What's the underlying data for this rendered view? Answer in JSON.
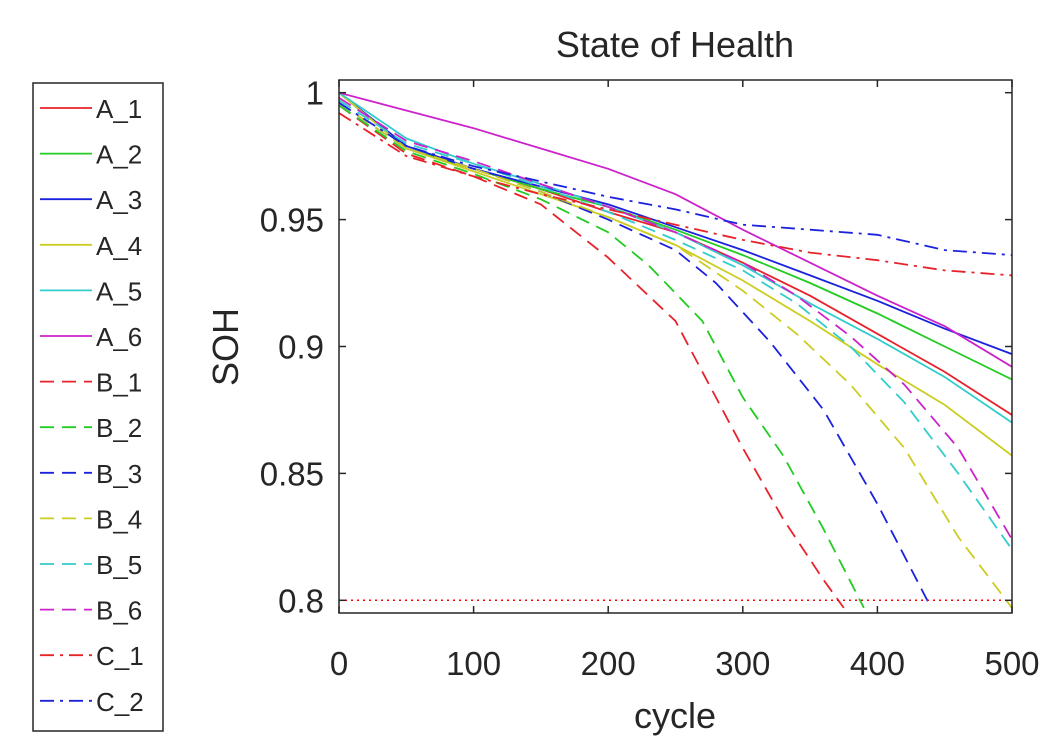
{
  "chart_data": {
    "type": "line",
    "title": "State of Health",
    "xlabel": "cycle",
    "ylabel": "SOH",
    "xlim": [
      0,
      500
    ],
    "ylim": [
      0.795,
      1.005
    ],
    "xticks": [
      0,
      100,
      200,
      300,
      400,
      500
    ],
    "xtick_labels": [
      "0",
      "100",
      "200",
      "300",
      "400",
      "500"
    ],
    "yticks": [
      0.8,
      0.85,
      0.9,
      0.95,
      1
    ],
    "ytick_labels": [
      "0.8",
      "0.85",
      "0.9",
      "0.95",
      "1"
    ],
    "grid": false,
    "legend_position": "outside-left",
    "threshold": {
      "y": 0.8,
      "color": "#ff0000",
      "style": "dotted"
    },
    "series": [
      {
        "name": "A_1",
        "color": "#e8222a",
        "dash": "solid",
        "x": [
          0,
          50,
          100,
          150,
          200,
          250,
          300,
          350,
          400,
          450,
          500
        ],
        "y": [
          1.0,
          0.978,
          0.97,
          0.962,
          0.953,
          0.945,
          0.933,
          0.92,
          0.905,
          0.89,
          0.873
        ]
      },
      {
        "name": "A_2",
        "color": "#22cc22",
        "dash": "solid",
        "x": [
          0,
          50,
          100,
          150,
          200,
          250,
          300,
          350,
          400,
          450,
          500
        ],
        "y": [
          1.0,
          0.978,
          0.97,
          0.962,
          0.955,
          0.946,
          0.936,
          0.925,
          0.913,
          0.9,
          0.887
        ]
      },
      {
        "name": "A_3",
        "color": "#1a22dd",
        "dash": "solid",
        "x": [
          0,
          50,
          100,
          150,
          200,
          250,
          300,
          350,
          400,
          450,
          500
        ],
        "y": [
          1.0,
          0.979,
          0.97,
          0.963,
          0.956,
          0.947,
          0.938,
          0.928,
          0.918,
          0.907,
          0.897
        ]
      },
      {
        "name": "A_4",
        "color": "#cccc22",
        "dash": "solid",
        "x": [
          0,
          50,
          100,
          150,
          200,
          250,
          300,
          350,
          400,
          450,
          500
        ],
        "y": [
          1.0,
          0.978,
          0.969,
          0.96,
          0.951,
          0.94,
          0.926,
          0.91,
          0.893,
          0.877,
          0.857
        ]
      },
      {
        "name": "A_5",
        "color": "#33cccc",
        "dash": "solid",
        "x": [
          0,
          50,
          100,
          150,
          200,
          250,
          300,
          350,
          400,
          450,
          500
        ],
        "y": [
          1.0,
          0.982,
          0.972,
          0.964,
          0.955,
          0.945,
          0.932,
          0.917,
          0.903,
          0.888,
          0.87
        ]
      },
      {
        "name": "A_6",
        "color": "#cc22cc",
        "dash": "solid",
        "x": [
          0,
          50,
          100,
          150,
          200,
          250,
          300,
          350,
          400,
          450,
          500
        ],
        "y": [
          1.0,
          0.993,
          0.986,
          0.978,
          0.97,
          0.96,
          0.946,
          0.933,
          0.92,
          0.908,
          0.892
        ]
      },
      {
        "name": "B_1",
        "color": "#e8222a",
        "dash": "dashed",
        "x": [
          0,
          50,
          100,
          150,
          200,
          250,
          270,
          300,
          330,
          360,
          375
        ],
        "y": [
          0.995,
          0.976,
          0.967,
          0.956,
          0.935,
          0.91,
          0.89,
          0.86,
          0.832,
          0.808,
          0.797
        ]
      },
      {
        "name": "B_2",
        "color": "#22cc22",
        "dash": "dashed",
        "x": [
          0,
          50,
          100,
          150,
          200,
          230,
          270,
          300,
          330,
          360,
          390
        ],
        "y": [
          0.995,
          0.977,
          0.968,
          0.958,
          0.945,
          0.932,
          0.91,
          0.88,
          0.857,
          0.828,
          0.797
        ]
      },
      {
        "name": "B_3",
        "color": "#1a22dd",
        "dash": "dashed",
        "x": [
          0,
          50,
          100,
          150,
          200,
          250,
          280,
          320,
          360,
          400,
          440
        ],
        "y": [
          0.996,
          0.978,
          0.97,
          0.961,
          0.95,
          0.938,
          0.925,
          0.902,
          0.875,
          0.838,
          0.797
        ]
      },
      {
        "name": "B_4",
        "color": "#cccc22",
        "dash": "dashed",
        "x": [
          0,
          50,
          100,
          150,
          200,
          250,
          300,
          340,
          380,
          420,
          460,
          500
        ],
        "y": [
          0.996,
          0.978,
          0.97,
          0.961,
          0.951,
          0.94,
          0.922,
          0.905,
          0.885,
          0.86,
          0.825,
          0.797
        ]
      },
      {
        "name": "B_5",
        "color": "#33cccc",
        "dash": "dashed",
        "x": [
          0,
          50,
          100,
          150,
          200,
          250,
          300,
          340,
          380,
          420,
          460,
          500
        ],
        "y": [
          0.997,
          0.98,
          0.972,
          0.963,
          0.953,
          0.942,
          0.93,
          0.917,
          0.9,
          0.878,
          0.85,
          0.82
        ]
      },
      {
        "name": "B_6",
        "color": "#cc22cc",
        "dash": "dashed",
        "x": [
          0,
          50,
          100,
          150,
          200,
          250,
          300,
          340,
          380,
          420,
          460,
          500
        ],
        "y": [
          0.998,
          0.981,
          0.973,
          0.964,
          0.955,
          0.945,
          0.933,
          0.92,
          0.904,
          0.885,
          0.86,
          0.824
        ]
      },
      {
        "name": "C_1",
        "color": "#e8222a",
        "dash": "dashdot",
        "x": [
          0,
          50,
          100,
          150,
          200,
          250,
          300,
          350,
          400,
          450,
          500
        ],
        "y": [
          0.992,
          0.975,
          0.967,
          0.96,
          0.954,
          0.948,
          0.942,
          0.937,
          0.934,
          0.93,
          0.928
        ]
      },
      {
        "name": "C_2",
        "color": "#1a22dd",
        "dash": "dashdot",
        "x": [
          0,
          50,
          100,
          150,
          200,
          250,
          300,
          350,
          400,
          450,
          500
        ],
        "y": [
          0.996,
          0.979,
          0.971,
          0.965,
          0.959,
          0.954,
          0.948,
          0.946,
          0.944,
          0.938,
          0.936
        ]
      }
    ]
  }
}
